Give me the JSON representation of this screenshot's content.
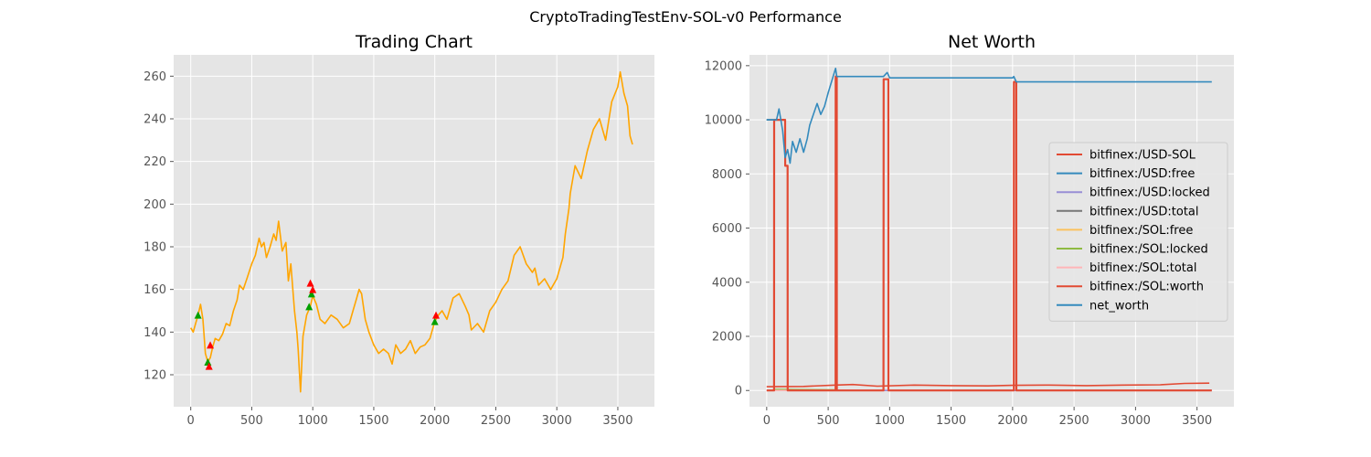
{
  "figure": {
    "suptitle": "CryptoTradingTestEnv-SOL-v0 Performance",
    "style": {
      "axes_bg": "#e5e5e5",
      "grid": "#ffffff"
    }
  },
  "chart_data": [
    {
      "type": "line",
      "title": "Trading Chart",
      "xlabel": "",
      "ylabel": "",
      "xlim": [
        -140,
        3800
      ],
      "ylim": [
        105,
        270
      ],
      "xticks": [
        0,
        500,
        1000,
        1500,
        2000,
        2500,
        3000,
        3500
      ],
      "yticks": [
        120,
        140,
        160,
        180,
        200,
        220,
        240,
        260
      ],
      "grid": true,
      "series": [
        {
          "color": "#FFA500",
          "x": [
            0,
            20,
            40,
            60,
            80,
            100,
            120,
            140,
            160,
            180,
            200,
            230,
            260,
            290,
            320,
            350,
            380,
            400,
            430,
            460,
            500,
            530,
            560,
            580,
            600,
            620,
            650,
            680,
            700,
            720,
            750,
            780,
            800,
            820,
            850,
            870,
            880,
            890,
            900,
            920,
            950,
            980,
            1000,
            1030,
            1060,
            1100,
            1150,
            1200,
            1250,
            1300,
            1330,
            1360,
            1380,
            1400,
            1430,
            1460,
            1500,
            1540,
            1580,
            1620,
            1650,
            1680,
            1720,
            1760,
            1800,
            1840,
            1880,
            1920,
            1960,
            2000,
            2030,
            2060,
            2100,
            2150,
            2200,
            2250,
            2280,
            2300,
            2350,
            2400,
            2450,
            2500,
            2550,
            2600,
            2650,
            2700,
            2750,
            2800,
            2820,
            2850,
            2900,
            2950,
            3000,
            3050,
            3070,
            3100,
            3110,
            3150,
            3200,
            3250,
            3300,
            3350,
            3400,
            3450,
            3500,
            3520,
            3550,
            3580,
            3600,
            3620
          ],
          "y": [
            142,
            140,
            144,
            148,
            153,
            146,
            130,
            126,
            128,
            133,
            137,
            136,
            139,
            144,
            143,
            150,
            155,
            162,
            160,
            165,
            172,
            176,
            184,
            180,
            182,
            175,
            180,
            186,
            183,
            192,
            178,
            182,
            164,
            172,
            150,
            140,
            132,
            122,
            112,
            138,
            148,
            152,
            157,
            153,
            146,
            144,
            148,
            146,
            142,
            144,
            150,
            156,
            160,
            158,
            146,
            140,
            134,
            130,
            132,
            130,
            125,
            134,
            130,
            132,
            136,
            130,
            133,
            134,
            137,
            145,
            148,
            150,
            146,
            156,
            158,
            152,
            148,
            141,
            144,
            140,
            150,
            154,
            160,
            164,
            176,
            180,
            172,
            168,
            170,
            162,
            165,
            160,
            165,
            175,
            186,
            198,
            205,
            218,
            212,
            225,
            235,
            240,
            230,
            248,
            255,
            262,
            252,
            246,
            232,
            228
          ]
        }
      ],
      "annotations": {
        "buy_color": "#00A000",
        "sell_color": "#FF0000",
        "buys": [
          [
            60,
            148
          ],
          [
            140,
            126
          ],
          [
            970,
            152
          ],
          [
            990,
            158
          ],
          [
            2000,
            145
          ]
        ],
        "sells": [
          [
            150,
            124
          ],
          [
            160,
            134
          ],
          [
            980,
            163
          ],
          [
            1000,
            160
          ],
          [
            2010,
            148
          ]
        ]
      }
    },
    {
      "type": "line",
      "title": "Net Worth",
      "xlabel": "",
      "ylabel": "",
      "xlim": [
        -140,
        3800
      ],
      "ylim": [
        -600,
        12400
      ],
      "xticks": [
        0,
        500,
        1000,
        1500,
        2000,
        2500,
        3000,
        3500
      ],
      "yticks": [
        0,
        2000,
        4000,
        6000,
        8000,
        10000,
        12000
      ],
      "grid": true,
      "legend": {
        "placement": "center-right"
      },
      "series": [
        {
          "name": "bitfinex:/USD-SOL",
          "color": "#E24A33",
          "x": [
            0,
            300,
            560,
            700,
            900,
            1200,
            1500,
            1800,
            2000,
            2300,
            2600,
            2900,
            3200,
            3400,
            3600
          ],
          "y": [
            140,
            150,
            200,
            220,
            160,
            200,
            180,
            170,
            190,
            200,
            180,
            200,
            210,
            260,
            270
          ]
        },
        {
          "name": "bitfinex:/USD:free",
          "color": "#348ABD",
          "x": [
            0,
            60
          ],
          "y": [
            10000,
            10000
          ]
        },
        {
          "name": "bitfinex:/USD:locked",
          "color": "#988ED5",
          "x": [
            0,
            3620
          ],
          "y": [
            0,
            0
          ]
        },
        {
          "name": "bitfinex:/USD:total",
          "color": "#777777",
          "x": [
            0,
            60
          ],
          "y": [
            10000,
            10000
          ]
        },
        {
          "name": "bitfinex:/SOL:free",
          "color": "#FBC15E",
          "x": [
            60,
            560
          ],
          "y": [
            0,
            0
          ]
        },
        {
          "name": "bitfinex:/SOL:locked",
          "color": "#8EBA42",
          "x": [
            60,
            560
          ],
          "y": [
            40,
            20
          ]
        },
        {
          "name": "bitfinex:/SOL:total",
          "color": "#FFB5B8",
          "x": [
            60,
            560
          ],
          "y": [
            0,
            0
          ]
        },
        {
          "name": "bitfinex:/SOL:worth",
          "color": "#E24A33",
          "x": [
            0,
            60,
            61,
            150,
            151,
            170,
            171,
            560,
            561,
            570,
            571,
            950,
            951,
            990,
            991,
            2010,
            2011,
            2030,
            2031,
            3620
          ],
          "y": [
            0,
            0,
            10000,
            10000,
            8300,
            8300,
            0,
            0,
            11600,
            11600,
            0,
            0,
            11500,
            11500,
            0,
            0,
            11400,
            11400,
            0,
            0
          ]
        },
        {
          "name": "net_worth",
          "color": "#348ABD",
          "x": [
            0,
            60,
            80,
            100,
            130,
            150,
            170,
            190,
            210,
            240,
            270,
            300,
            330,
            350,
            380,
            410,
            440,
            470,
            500,
            520,
            540,
            560,
            570,
            600,
            700,
            800,
            900,
            950,
            980,
            1000,
            1500,
            2000,
            2010,
            2030,
            2500,
            3000,
            3620
          ],
          "y": [
            10000,
            10000,
            10000,
            10400,
            9600,
            8600,
            8900,
            8400,
            9200,
            8800,
            9300,
            8800,
            9300,
            9800,
            10200,
            10600,
            10200,
            10500,
            11000,
            11300,
            11600,
            11900,
            11600,
            11600,
            11600,
            11600,
            11600,
            11600,
            11750,
            11550,
            11550,
            11550,
            11600,
            11400,
            11400,
            11400,
            11400
          ]
        }
      ]
    }
  ]
}
